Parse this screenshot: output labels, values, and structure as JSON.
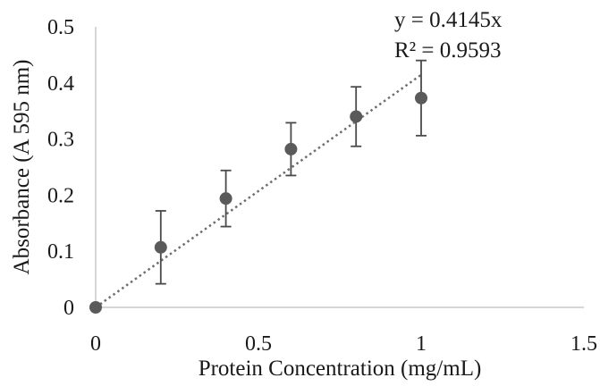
{
  "chart_data": {
    "type": "scatter",
    "title": "",
    "xlabel": "Protein Concentration (mg/mL)",
    "ylabel": "Absorbance (A 595 nm)",
    "xlim": [
      0,
      1.5
    ],
    "ylim": [
      0,
      0.5
    ],
    "x_ticks": [
      "0",
      "0.5",
      "1",
      "1.5"
    ],
    "y_ticks": [
      "0",
      "0.1",
      "0.2",
      "0.3",
      "0.4",
      "0.5"
    ],
    "x_tick_values": [
      0,
      0.5,
      1,
      1.5
    ],
    "y_tick_values": [
      0,
      0.1,
      0.2,
      0.3,
      0.4,
      0.5
    ],
    "grid": false,
    "legend": "none",
    "marker_color": "#5a5a5a",
    "series": [
      {
        "x": [
          0,
          0.2,
          0.4,
          0.6,
          0.8,
          1.0
        ],
        "y": [
          0,
          0.107,
          0.194,
          0.282,
          0.34,
          0.373
        ],
        "error": [
          0,
          0.065,
          0.05,
          0.047,
          0.053,
          0.067
        ]
      }
    ],
    "trendline": {
      "slope": 0.4145,
      "intercept": 0,
      "x_range": [
        0,
        1.0
      ],
      "style": "dotted",
      "color": "#6e6e6e",
      "equation": "y = 0.4145x",
      "r_squared": "R² = 0.9593"
    }
  }
}
